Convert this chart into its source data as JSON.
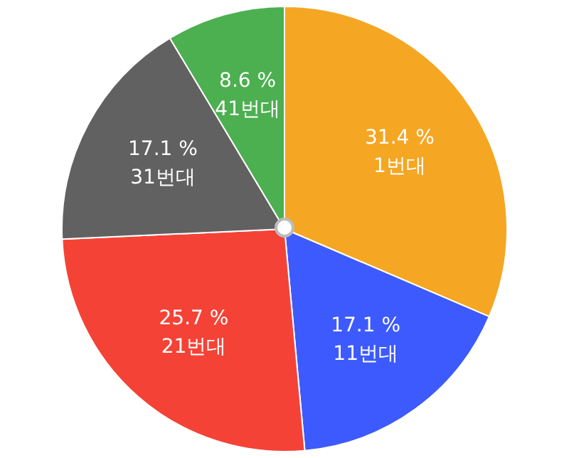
{
  "chart_data": {
    "type": "pie",
    "categories": [
      "1번대",
      "11번대",
      "21번대",
      "31번대",
      "41번대"
    ],
    "values": [
      31.4,
      17.1,
      25.7,
      17.1,
      8.6
    ],
    "value_labels": [
      "31.4 %",
      "17.1 %",
      "25.7 %",
      "17.1 %",
      "8.6 %"
    ],
    "colors": [
      "#f5a623",
      "#3d5afe",
      "#f44336",
      "#616161",
      "#4caf50"
    ],
    "legend": false
  }
}
